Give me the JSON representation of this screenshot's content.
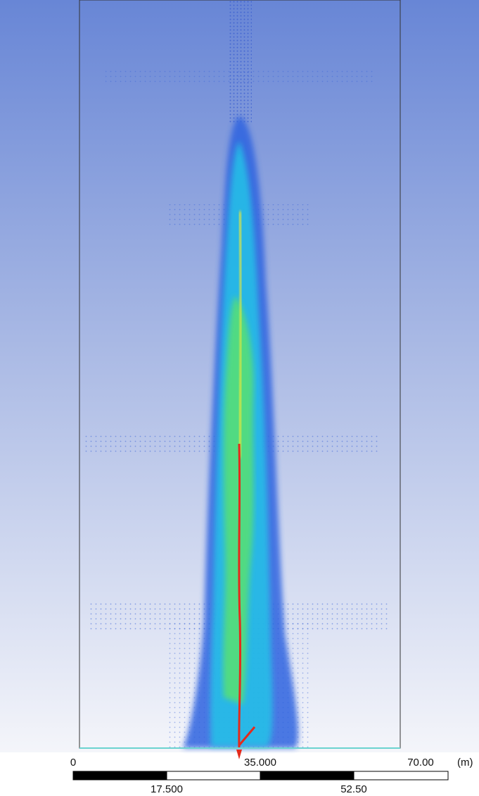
{
  "scale": {
    "top_labels": [
      "0",
      "35.000",
      "70.00"
    ],
    "unit": "(m)",
    "bottom_labels": [
      "17.500",
      "52.50"
    ]
  }
}
